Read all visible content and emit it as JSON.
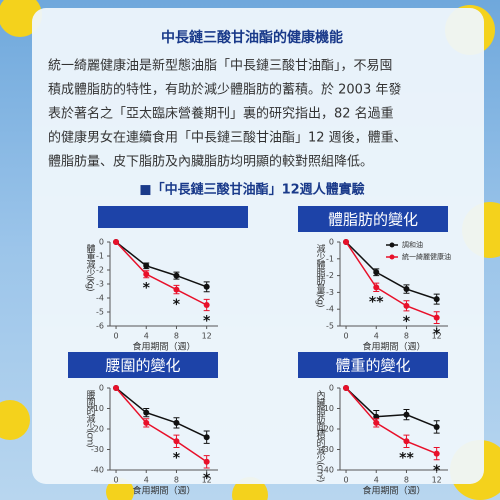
{
  "header": {
    "title": "中長鏈三酸甘油酯的健康機能"
  },
  "paragraph": {
    "lines": [
      "統一綺麗健康油是新型態油脂「中長鏈三酸甘油酯」，不易囤",
      "積成體脂肪的特性，有助於減少體脂肪的蓄積。於 2003 年發",
      "表於著名之「亞太臨床營養期刊」裏的研究指出，82 名過重",
      "的健康男女在連續食用「中長鏈三酸甘油酯」12 週後，體重、",
      "體脂肪量、皮下脂肪及內臟脂肪均明顯的較對照組降低。"
    ]
  },
  "section": {
    "title": "■「中長鏈三酸甘油酯」12週人體實驗"
  },
  "chart_data": [
    {
      "type": "line",
      "ylabel": "體重減少(Kg)",
      "xlabel": "食用期間（週）",
      "x": [
        0,
        4,
        8,
        12
      ],
      "xlim": [
        -0.8,
        13.5
      ],
      "xticks": [
        0,
        4,
        8,
        12
      ],
      "ylim": [
        -6,
        0
      ],
      "yticks": [
        0,
        -1,
        -2,
        -3,
        -4,
        -5,
        -6
      ],
      "series": [
        {
          "color": "#111111",
          "values": [
            0,
            -1.7,
            -2.4,
            -3.2
          ],
          "errors": [
            0,
            0.2,
            0.25,
            0.35
          ]
        },
        {
          "color": "#e8102a",
          "values": [
            0,
            -2.3,
            -3.4,
            -4.5
          ],
          "errors": [
            0,
            0.25,
            0.3,
            0.4
          ]
        }
      ],
      "annotations": [
        {
          "x": 4,
          "text": "*"
        },
        {
          "x": 8,
          "text": "*"
        },
        {
          "x": 12,
          "text": "*"
        }
      ]
    },
    {
      "type": "line",
      "title": "體脂肪的變化",
      "ylabel": "減少體脂肪量(Kg)",
      "xlabel": "食用期間（週）",
      "x": [
        0,
        4,
        8,
        12
      ],
      "xlim": [
        -0.8,
        13.5
      ],
      "xticks": [
        0,
        4,
        8,
        12
      ],
      "ylim": [
        -5,
        0
      ],
      "yticks": [
        0,
        -1,
        -2,
        -3,
        -4,
        -5
      ],
      "series": [
        {
          "name": "調和油",
          "color": "#111111",
          "values": [
            0,
            -1.8,
            -2.8,
            -3.4
          ],
          "errors": [
            0,
            0.2,
            0.25,
            0.3
          ]
        },
        {
          "name": "統一綺麗健康油",
          "color": "#e8102a",
          "values": [
            0,
            -2.7,
            -3.8,
            -4.5
          ],
          "errors": [
            0,
            0.25,
            0.3,
            0.35
          ]
        }
      ],
      "annotations": [
        {
          "x": 4,
          "text": "**"
        },
        {
          "x": 8,
          "text": "*"
        },
        {
          "x": 12,
          "text": "*"
        }
      ]
    },
    {
      "type": "line",
      "title": "腰圍的變化",
      "ylabel": "腰圍的減少(cm)",
      "xlabel": "食用期間（週）",
      "x": [
        0,
        4,
        8,
        12
      ],
      "xlim": [
        -0.8,
        13.5
      ],
      "xticks": [
        0,
        4,
        8,
        12
      ],
      "ylim": [
        -40,
        0
      ],
      "yticks": [
        0,
        -10,
        -20,
        -30,
        -40
      ],
      "series": [
        {
          "color": "#111111",
          "values": [
            0,
            -12,
            -17,
            -24
          ],
          "errors": [
            0,
            2,
            2.5,
            3
          ]
        },
        {
          "color": "#e8102a",
          "values": [
            0,
            -17,
            -26,
            -36
          ],
          "errors": [
            0,
            2,
            3,
            3
          ]
        }
      ],
      "annotations": [
        {
          "x": 8,
          "text": "*"
        },
        {
          "x": 12,
          "text": "*"
        }
      ]
    },
    {
      "type": "line",
      "title": "體重的變化",
      "ylabel": "內臟脂肪面積的減少(cm²)",
      "xlabel": "食用期間（週）",
      "x": [
        0,
        4,
        8,
        12
      ],
      "xlim": [
        -0.8,
        13.5
      ],
      "xticks": [
        0,
        4,
        8,
        12
      ],
      "ylim": [
        -40,
        0
      ],
      "yticks": [
        0,
        -10,
        -20,
        -30,
        -40
      ],
      "series": [
        {
          "color": "#111111",
          "values": [
            0,
            -14,
            -13,
            -19
          ],
          "errors": [
            0,
            3,
            2.5,
            3
          ]
        },
        {
          "color": "#e8102a",
          "values": [
            0,
            -17,
            -26,
            -32
          ],
          "errors": [
            0,
            2,
            3,
            3
          ]
        }
      ],
      "annotations": [
        {
          "x": 8,
          "text": "**"
        },
        {
          "x": 12,
          "text": "*"
        }
      ]
    }
  ]
}
